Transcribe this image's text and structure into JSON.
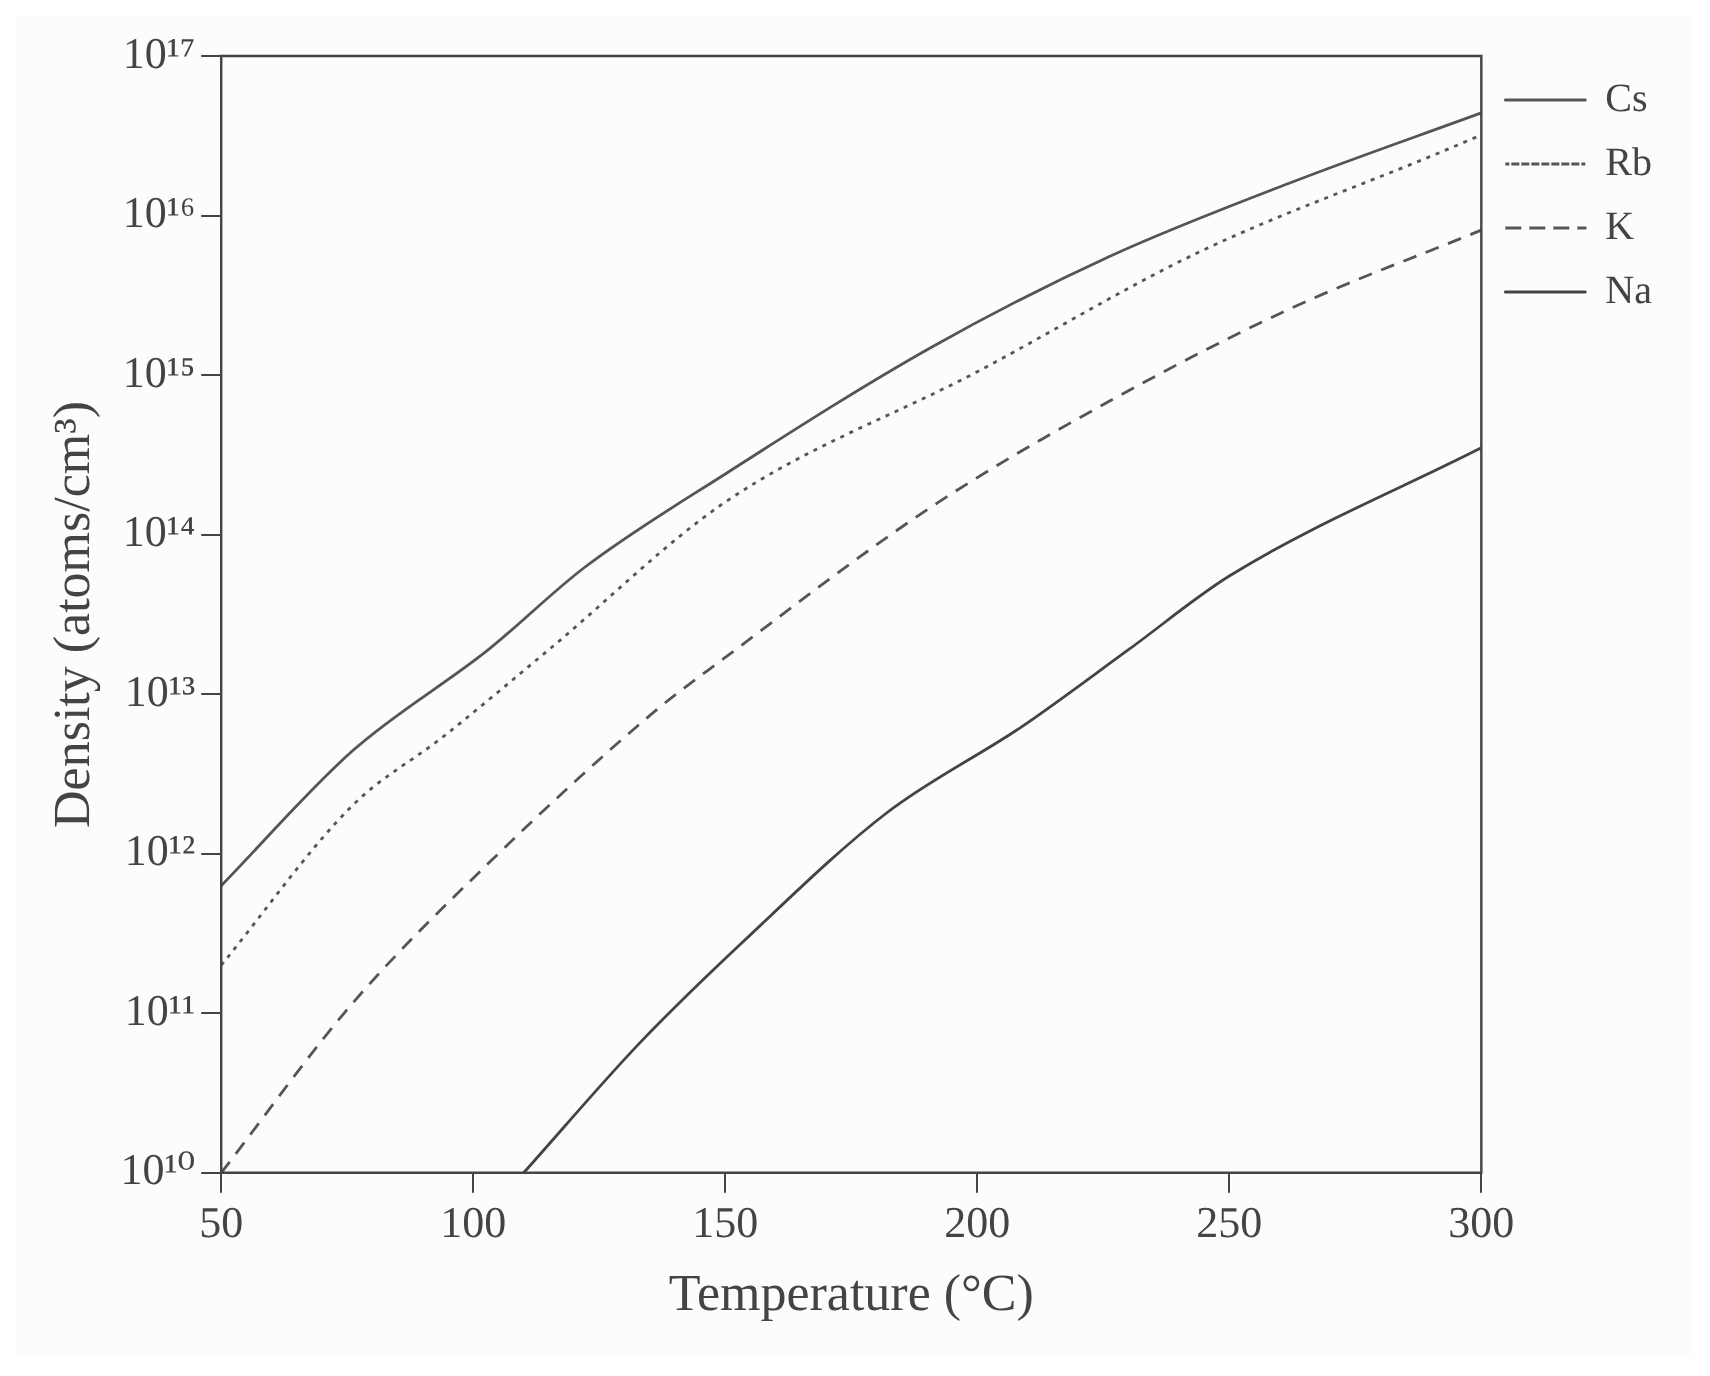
{
  "chart_data": {
    "type": "line",
    "xlabel": "Temperature (°C)",
    "ylabel": "Density (atoms/cm³)",
    "log": "y",
    "legend": "top right",
    "grid": false,
    "marker": "none",
    "xlim": [
      50,
      300
    ],
    "xticks": [
      50,
      100,
      150,
      200,
      250,
      300
    ],
    "ylim": [
      10000000000.0,
      1e+17
    ],
    "yticks": [
      {
        "value": 10000000000.0,
        "label": "10¹⁰"
      },
      {
        "value": 100000000000.0,
        "label": "10¹¹"
      },
      {
        "value": 1000000000000.0,
        "label": "10¹²"
      },
      {
        "value": 10000000000000.0,
        "label": "10¹³"
      },
      {
        "value": 100000000000000.0,
        "label": "10¹⁴"
      },
      {
        "value": 1000000000000000.0,
        "label": "10¹⁵"
      },
      {
        "value": 1e+16,
        "label": "10¹⁶"
      },
      {
        "value": 1e+17,
        "label": "10¹⁷"
      }
    ],
    "series": [
      {
        "name": "Cs",
        "color": "#555555",
        "line_style": "solid",
        "x": [
          50,
          76,
          103,
          122,
          150,
          191,
          226,
          262,
          300
        ],
        "values": [
          630000000000.0,
          4400000000000.0,
          19000000000000.0,
          62000000000000.0,
          240000000000000.0,
          1500000000000000.0,
          5500000000000000.0,
          1.6e+16,
          4.4e+16
        ]
      },
      {
        "name": "Rb",
        "color": "#555555",
        "line_style": "dotted",
        "x": [
          50,
          76,
          94,
          115,
          150,
          200,
          244,
          292,
          300
        ],
        "values": [
          200000000000.0,
          2000000000000.0,
          5400000000000.0,
          19000000000000.0,
          160000000000000.0,
          1050000000000000.0,
          5900000000000000.0,
          2.5e+16,
          3.2e+16
        ]
      },
      {
        "name": "K",
        "color": "#555555",
        "line_style": "dashed",
        "x": [
          50,
          76,
          103,
          136,
          150,
          191,
          226,
          262,
          300
        ],
        "values": [
          10000000000.0,
          115000000000.0,
          870000000000.0,
          7800000000000.0,
          17000000000000.0,
          150000000000000.0,
          680000000000000.0,
          2600000000000000.0,
          8100000000000000.0
        ]
      },
      {
        "name": "Na",
        "color": "#444444",
        "line_style": "solid",
        "x": [
          110,
          133,
          154,
          182,
          209,
          230,
          250,
          300
        ],
        "values": [
          10000000000.0,
          65000000000.0,
          290000000000.0,
          1800000000000.0,
          6300000000000.0,
          19000000000000.0,
          55000000000000.0,
          350000000000000.0
        ]
      }
    ]
  }
}
